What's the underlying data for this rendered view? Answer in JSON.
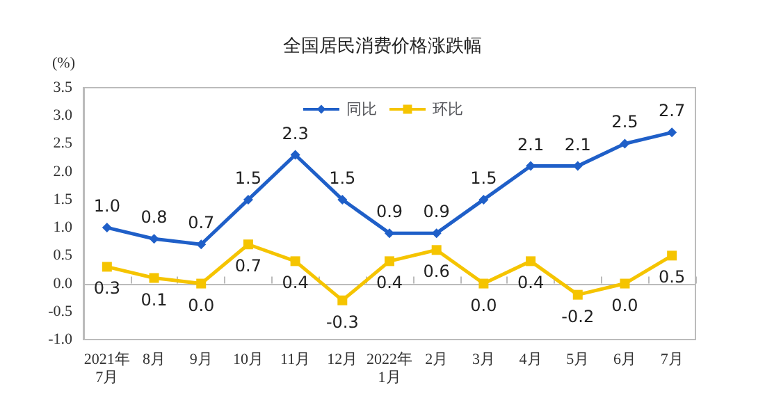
{
  "chart_data": {
    "type": "line",
    "title": "全国居民消费价格涨跌幅",
    "ylabel": "(%)",
    "categories": [
      "2021年\n7月",
      "8月",
      "9月",
      "10月",
      "11月",
      "12月",
      "2022年\n1月",
      "2月",
      "3月",
      "4月",
      "5月",
      "6月",
      "7月"
    ],
    "series": [
      {
        "name": "同比",
        "color": "#1f5fc8",
        "marker": "diamond",
        "values": [
          1.0,
          0.8,
          0.7,
          1.5,
          2.3,
          1.5,
          0.9,
          0.9,
          1.5,
          2.1,
          2.1,
          2.5,
          2.7
        ],
        "value_labels": [
          "1.0",
          "0.8",
          "0.7",
          "1.5",
          "2.3",
          "1.5",
          "0.9",
          "0.9",
          "1.5",
          "2.1",
          "2.1",
          "2.5",
          "2.7"
        ]
      },
      {
        "name": "环比",
        "color": "#f5c400",
        "marker": "square",
        "values": [
          0.3,
          0.1,
          0.0,
          0.7,
          0.4,
          -0.3,
          0.4,
          0.6,
          0.0,
          0.4,
          -0.2,
          0.0,
          0.5
        ],
        "value_labels": [
          "0.3",
          "0.1",
          "0.0",
          "0.7",
          "0.4",
          "-0.3",
          "0.4",
          "0.6",
          "0.0",
          "0.4",
          "-0.2",
          "0.0",
          "0.5"
        ]
      }
    ],
    "ylim": [
      -1.0,
      3.5
    ],
    "yticks": [
      {
        "value": -1,
        "label": "-1.0"
      },
      {
        "value": -0.5,
        "label": "-0.5"
      },
      {
        "value": 0,
        "label": "0.0"
      },
      {
        "value": 0.5,
        "label": "0.5"
      },
      {
        "value": 1,
        "label": "1.0"
      },
      {
        "value": 1.5,
        "label": "1.5"
      },
      {
        "value": 2,
        "label": "2.0"
      },
      {
        "value": 2.5,
        "label": "2.5"
      },
      {
        "value": 3,
        "label": "3.0"
      },
      {
        "value": 3.5,
        "label": "3.5"
      }
    ],
    "legend": "top",
    "line_style": "solid"
  }
}
